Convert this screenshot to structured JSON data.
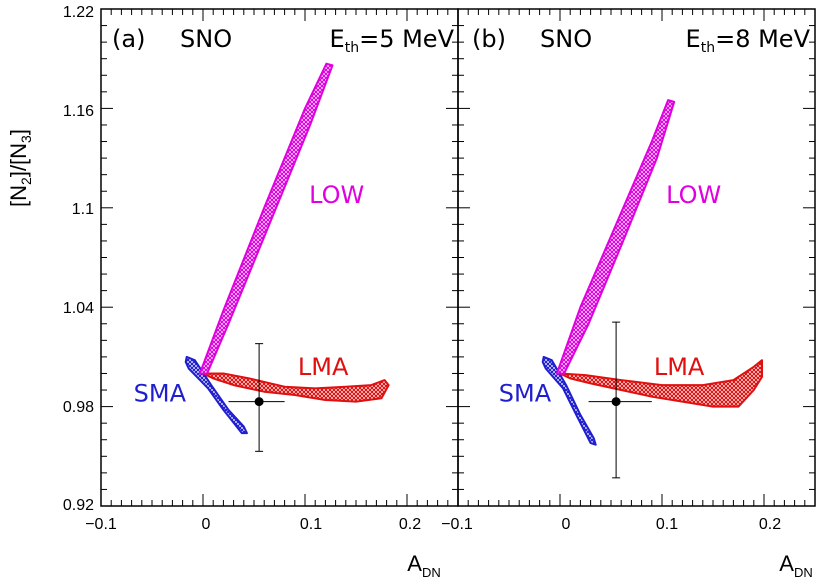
{
  "chart_data": {
    "type": "scatter",
    "ylabel_parts": {
      "a": "[N",
      "sub2": "2",
      "b": "]/[N",
      "sub3": "3",
      "c": "]"
    },
    "xlabel_parts": {
      "main": "A",
      "sub": "DN"
    },
    "ylim": [
      0.92,
      1.22
    ],
    "yticks": [
      0.92,
      0.98,
      1.04,
      1.1,
      1.16,
      1.22
    ],
    "ytick_labels": [
      "0.92",
      "0.98",
      "1.04",
      "1.1",
      "1.16",
      "1.22"
    ],
    "xlim": [
      -0.1,
      0.25
    ],
    "xticks": [
      -0.1,
      0,
      0.1,
      0.2
    ],
    "xtick_labels": [
      "−0.1",
      "0",
      "0.1",
      "0.2"
    ],
    "colors": {
      "SMA": "#1f1fd0",
      "LMA": "#e01010",
      "LOW": "#e000e0",
      "point": "#000000"
    },
    "panels": [
      {
        "id": "a",
        "panel_label": "(a)",
        "experiment": "SNO",
        "eth_main": "E",
        "eth_sub": "th",
        "eth_value": "=5 MeV",
        "regions": [
          {
            "name": "SMA",
            "label": "SMA",
            "polygon": [
              [
                -0.016,
                1.01
              ],
              [
                -0.008,
                1.008
              ],
              [
                0.008,
                0.993
              ],
              [
                0.025,
                0.978
              ],
              [
                0.04,
                0.968
              ],
              [
                0.043,
                0.964
              ],
              [
                0.038,
                0.964
              ],
              [
                0.02,
                0.978
              ],
              [
                0.005,
                0.991
              ],
              [
                -0.014,
                1.003
              ],
              [
                -0.017,
                1.007
              ]
            ]
          },
          {
            "name": "LMA",
            "label": "LMA",
            "polygon": [
              [
                0.0,
                1.0
              ],
              [
                0.02,
                1.0
              ],
              [
                0.045,
                0.997
              ],
              [
                0.08,
                0.992
              ],
              [
                0.11,
                0.991
              ],
              [
                0.14,
                0.992
              ],
              [
                0.165,
                0.993
              ],
              [
                0.178,
                0.996
              ],
              [
                0.182,
                0.993
              ],
              [
                0.175,
                0.985
              ],
              [
                0.15,
                0.983
              ],
              [
                0.12,
                0.984
              ],
              [
                0.09,
                0.987
              ],
              [
                0.06,
                0.989
              ],
              [
                0.03,
                0.993
              ],
              [
                0.01,
                0.997
              ]
            ]
          },
          {
            "name": "LOW",
            "label": "LOW",
            "polygon": [
              [
                -0.003,
                1.0
              ],
              [
                0.02,
                1.038
              ],
              [
                0.06,
                1.1
              ],
              [
                0.1,
                1.16
              ],
              [
                0.121,
                1.187
              ],
              [
                0.127,
                1.186
              ],
              [
                0.105,
                1.15
              ],
              [
                0.065,
                1.09
              ],
              [
                0.025,
                1.03
              ],
              [
                0.004,
                1.0
              ]
            ]
          }
        ],
        "point": {
          "x": 0.055,
          "y": 0.983,
          "x_err": [
            0.025,
            0.08
          ],
          "y_err": [
            0.953,
            1.018
          ]
        },
        "label_positions": {
          "SMA": [
            -0.068,
            0.983
          ],
          "LMA": [
            0.093,
            0.999
          ],
          "LOW": [
            0.104,
            1.103
          ]
        }
      },
      {
        "id": "b",
        "panel_label": "(b)",
        "experiment": "SNO",
        "eth_main": "E",
        "eth_sub": "th",
        "eth_value": "=8 MeV",
        "regions": [
          {
            "name": "SMA",
            "label": "SMA",
            "polygon": [
              [
                -0.016,
                1.01
              ],
              [
                -0.008,
                1.008
              ],
              [
                0.006,
                0.993
              ],
              [
                0.02,
                0.975
              ],
              [
                0.033,
                0.961
              ],
              [
                0.035,
                0.957
              ],
              [
                0.03,
                0.958
              ],
              [
                0.016,
                0.975
              ],
              [
                0.003,
                0.991
              ],
              [
                -0.014,
                1.003
              ],
              [
                -0.017,
                1.007
              ]
            ]
          },
          {
            "name": "LMA",
            "label": "LMA",
            "polygon": [
              [
                0.0,
                1.0
              ],
              [
                0.025,
                0.999
              ],
              [
                0.06,
                0.996
              ],
              [
                0.1,
                0.993
              ],
              [
                0.14,
                0.993
              ],
              [
                0.17,
                0.996
              ],
              [
                0.19,
                1.004
              ],
              [
                0.198,
                1.008
              ],
              [
                0.198,
                0.998
              ],
              [
                0.19,
                0.99
              ],
              [
                0.175,
                0.98
              ],
              [
                0.15,
                0.98
              ],
              [
                0.12,
                0.983
              ],
              [
                0.09,
                0.986
              ],
              [
                0.06,
                0.99
              ],
              [
                0.03,
                0.994
              ],
              [
                0.01,
                0.997
              ]
            ]
          },
          {
            "name": "LOW",
            "label": "LOW",
            "polygon": [
              [
                -0.003,
                1.0
              ],
              [
                0.02,
                1.04
              ],
              [
                0.055,
                1.09
              ],
              [
                0.09,
                1.14
              ],
              [
                0.106,
                1.165
              ],
              [
                0.112,
                1.164
              ],
              [
                0.095,
                1.13
              ],
              [
                0.062,
                1.08
              ],
              [
                0.028,
                1.03
              ],
              [
                0.004,
                1.0
              ]
            ]
          }
        ],
        "point": {
          "x": 0.055,
          "y": 0.983,
          "x_err": [
            0.028,
            0.09
          ],
          "y_err": [
            0.937,
            1.031
          ]
        },
        "label_positions": {
          "SMA": [
            -0.06,
            0.983
          ],
          "LMA": [
            0.092,
            0.999
          ],
          "LOW": [
            0.104,
            1.103
          ]
        }
      }
    ]
  }
}
